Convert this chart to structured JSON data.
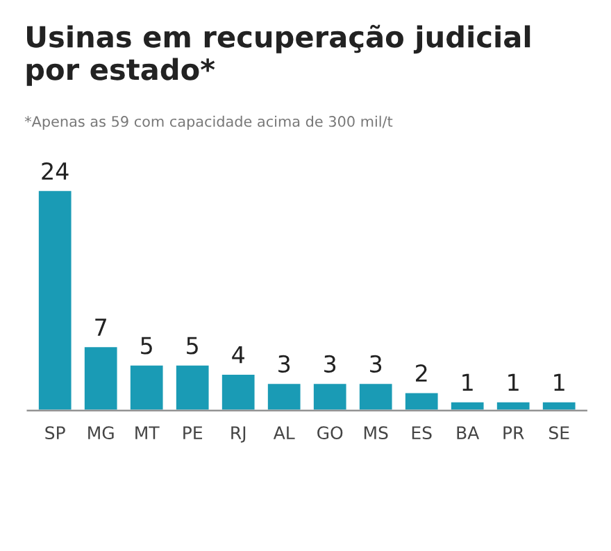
{
  "chart_data": {
    "type": "bar",
    "title": "Usinas em recuperação judicial\npor estado*",
    "subtitle": "*Apenas as 59 com capacidade acima de 300 mil/t",
    "categories": [
      "SP",
      "MG",
      "MT",
      "PE",
      "RJ",
      "AL",
      "GO",
      "MS",
      "ES",
      "BA",
      "PR",
      "SE"
    ],
    "values": [
      24,
      7,
      5,
      5,
      4,
      3,
      3,
      3,
      2,
      1,
      1,
      1
    ],
    "color": "#1a9bb5",
    "data_labels": true,
    "grid": false,
    "legend": false
  }
}
